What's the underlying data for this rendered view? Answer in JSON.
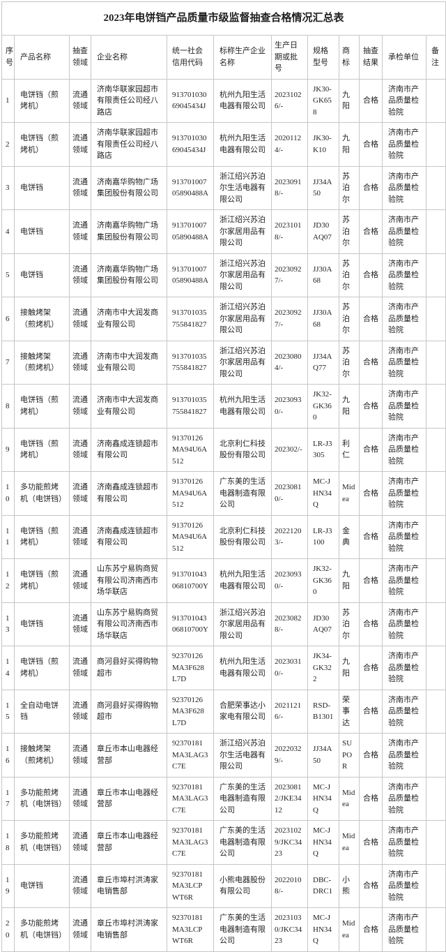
{
  "title": "2023年电饼铛产品质量市级监督抽查合格情况汇总表",
  "table": {
    "headers": [
      "序号",
      "产品名称",
      "抽查领域",
      "企业名称",
      "统一社会信用代码",
      "标称生产企业名称",
      "生产日期或批号",
      "规格型号",
      "商标",
      "抽查结果",
      "承检单位",
      "备注"
    ],
    "rows": [
      {
        "no": "1",
        "product": "电饼铛（煎烤机）",
        "field": "流通领域",
        "enterprise": "济南华联家园超市有限责任公司经八路店",
        "credit_code": "91370103069045434J",
        "manufacturer": "杭州九阳生活电器有限公司",
        "date": "20231026/-",
        "model": "JK30-GK658",
        "brand": "九阳",
        "result": "合格",
        "inspector": "济南市产品质量检验院",
        "remark": ""
      },
      {
        "no": "2",
        "product": "电饼铛（煎烤机）",
        "field": "流通领域",
        "enterprise": "济南华联家园超市有限责任公司经八路店",
        "credit_code": "91370103069045434J",
        "manufacturer": "杭州九阳生活电器有限公司",
        "date": "20201124/-",
        "model": "JK30-K10",
        "brand": "九阳",
        "result": "合格",
        "inspector": "济南市产品质量检验院",
        "remark": ""
      },
      {
        "no": "3",
        "product": "电饼铛",
        "field": "流通领域",
        "enterprise": "济南嘉华购物广场集团股份有限公司",
        "credit_code": "91370100705890488A",
        "manufacturer": "浙江绍兴苏泊尔生活电器有限公司",
        "date": "20230918/-",
        "model": "JJ34A50",
        "brand": "苏泊尔",
        "result": "合格",
        "inspector": "济南市产品质量检验院",
        "remark": ""
      },
      {
        "no": "4",
        "product": "电饼铛",
        "field": "流通领域",
        "enterprise": "济南嘉华购物广场集团股份有限公司",
        "credit_code": "91370100705890488A",
        "manufacturer": "浙江绍兴苏泊尔家居用品有限公司",
        "date": "20231018/-",
        "model": "JD30AQ07",
        "brand": "苏泊尔",
        "result": "合格",
        "inspector": "济南市产品质量检验院",
        "remark": ""
      },
      {
        "no": "5",
        "product": "电饼铛",
        "field": "流通领域",
        "enterprise": "济南嘉华购物广场集团股份有限公司",
        "credit_code": "91370100705890488A",
        "manufacturer": "浙江绍兴苏泊尔家居用品有限公司",
        "date": "20230927/-",
        "model": "JJ30A68",
        "brand": "苏泊尔",
        "result": "合格",
        "inspector": "济南市产品质量检验院",
        "remark": ""
      },
      {
        "no": "6",
        "product": "接触烤架（煎烤机）",
        "field": "流通领域",
        "enterprise": "济南市中大润发商业有限公司",
        "credit_code": "913701035755841827",
        "manufacturer": "浙江绍兴苏泊尔家居用品有限公司",
        "date": "20230927/-",
        "model": "JJ30A68",
        "brand": "苏泊尔",
        "result": "合格",
        "inspector": "济南市产品质量检验院",
        "remark": ""
      },
      {
        "no": "7",
        "product": "接触烤架（煎烤机）",
        "field": "流通领域",
        "enterprise": "济南市中大润发商业有限公司",
        "credit_code": "913701035755841827",
        "manufacturer": "浙江绍兴苏泊尔家居用品有限公司",
        "date": "20230804/-",
        "model": "JJ34AQ77",
        "brand": "苏泊尔",
        "result": "合格",
        "inspector": "济南市产品质量检验院",
        "remark": ""
      },
      {
        "no": "8",
        "product": "电饼铛（煎烤机）",
        "field": "流通领域",
        "enterprise": "济南市中大润发商业有限公司",
        "credit_code": "913701035755841827",
        "manufacturer": "杭州九阳生活电器有限公司",
        "date": "20230930/-",
        "model": "JK32-GK360",
        "brand": "九阳",
        "result": "合格",
        "inspector": "济南市产品质量检验院",
        "remark": ""
      },
      {
        "no": "9",
        "product": "电饼铛（煎烤机）",
        "field": "流通领域",
        "enterprise": "济南鑫成连锁超市有限公司",
        "credit_code": "91370126MA94U6A512",
        "manufacturer": "北京利仁科技股份有限公司",
        "date": "202302/-",
        "model": "LR-J3305",
        "brand": "利仁",
        "result": "合格",
        "inspector": "济南市产品质量检验院",
        "remark": ""
      },
      {
        "no": "10",
        "product": "多功能煎烤机（电饼铛）",
        "field": "流通领域",
        "enterprise": "济南鑫成连锁超市有限公司",
        "credit_code": "91370126MA94U6A512",
        "manufacturer": "广东美的生活电器制造有限公司",
        "date": "20230810/-",
        "model": "MC-JHN34Q",
        "brand": "Midea",
        "result": "合格",
        "inspector": "济南市产品质量检验院",
        "remark": ""
      },
      {
        "no": "11",
        "product": "电饼铛（煎烤机）",
        "field": "流通领域",
        "enterprise": "济南鑫成连锁超市有限公司",
        "credit_code": "91370126MA94U6A512",
        "manufacturer": "北京利仁科技股份有限公司",
        "date": "20221203/-",
        "model": "LR-J3100",
        "brand": "金典",
        "result": "合格",
        "inspector": "济南市产品质量检验院",
        "remark": ""
      },
      {
        "no": "12",
        "product": "电饼铛（煎烤机）",
        "field": "流通领域",
        "enterprise": "山东苏宁易购商贸有限公司济南西市场华联店",
        "credit_code": "91370104306810700Y",
        "manufacturer": "杭州九阳生活电器有限公司",
        "date": "20230930/-",
        "model": "JK32-GK360",
        "brand": "九阳",
        "result": "合格",
        "inspector": "济南市产品质量检验院",
        "remark": ""
      },
      {
        "no": "13",
        "product": "电饼铛",
        "field": "流通领域",
        "enterprise": "山东苏宁易购商贸有限公司济南西市场华联店",
        "credit_code": "91370104306810700Y",
        "manufacturer": "浙江绍兴苏泊尔家居用品有限公司",
        "date": "20230828/-",
        "model": "JD30AQ07",
        "brand": "苏泊尔",
        "result": "合格",
        "inspector": "济南市产品质量检验院",
        "remark": ""
      },
      {
        "no": "14",
        "product": "电饼铛（煎烤机）",
        "field": "流通领域",
        "enterprise": "商河县好买得购物超市",
        "credit_code": "92370126MA3F628L7D",
        "manufacturer": "杭州九阳生活电器有限公司",
        "date": "20230310/-",
        "model": "JK34-GK322",
        "brand": "九阳",
        "result": "合格",
        "inspector": "济南市产品质量检验院",
        "remark": ""
      },
      {
        "no": "15",
        "product": "全自动电饼铛",
        "field": "流通领域",
        "enterprise": "商河县好买得购物超市",
        "credit_code": "92370126MA3F628L7D",
        "manufacturer": "合肥荣事达小家电有限公司",
        "date": "20211216/-",
        "model": "RSD-B1301",
        "brand": "荣事达",
        "result": "合格",
        "inspector": "济南市产品质量检验院",
        "remark": ""
      },
      {
        "no": "16",
        "product": "接触烤架（煎烤机）",
        "field": "流通领域",
        "enterprise": "章丘市本山电器经营部",
        "credit_code": "92370181MA3LAG3C7E",
        "manufacturer": "浙江绍兴苏泊尔生活电器有限公司",
        "date": "20220329/-",
        "model": "JJ34A50",
        "brand": "SUPOR",
        "result": "合格",
        "inspector": "济南市产品质量检验院",
        "remark": ""
      },
      {
        "no": "17",
        "product": "多功能煎烤机（电饼铛）",
        "field": "流通领域",
        "enterprise": "章丘市本山电器经营部",
        "credit_code": "92370181MA3LAG3C7E",
        "manufacturer": "广东美的生活电器制造有限公司",
        "date": "20230812/JKE3412",
        "model": "MC-JHN34Q",
        "brand": "Midea",
        "result": "合格",
        "inspector": "济南市产品质量检验院",
        "remark": ""
      },
      {
        "no": "18",
        "product": "多功能煎烤机（电饼铛）",
        "field": "流通领域",
        "enterprise": "章丘市本山电器经营部",
        "credit_code": "92370181MA3LAG3C7E",
        "manufacturer": "广东美的生活电器制造有限公司",
        "date": "20231029/JKC3423",
        "model": "MC-JHN34Q",
        "brand": "Midea",
        "result": "合格",
        "inspector": "济南市产品质量检验院",
        "remark": ""
      },
      {
        "no": "19",
        "product": "电饼铛",
        "field": "流通领域",
        "enterprise": "章丘市埠村洪涛家电销售部",
        "credit_code": "92370181MA3LCPWT6R",
        "manufacturer": "小熊电器股份有限公司",
        "date": "20220108/-",
        "model": "DBC-DRC1",
        "brand": "小熊",
        "result": "合格",
        "inspector": "济南市产品质量检验院",
        "remark": ""
      },
      {
        "no": "20",
        "product": "多功能煎烤机（电饼铛）",
        "field": "流通领域",
        "enterprise": "章丘市埠村洪涛家电销售部",
        "credit_code": "92370181MA3LCPWT6R",
        "manufacturer": "广东美的生活电器制造有限公司",
        "date": "20231030/JKC3423",
        "model": "MC-JHN34Q",
        "brand": "Midea",
        "result": "合格",
        "inspector": "济南市产品质量检验院",
        "remark": ""
      }
    ]
  }
}
